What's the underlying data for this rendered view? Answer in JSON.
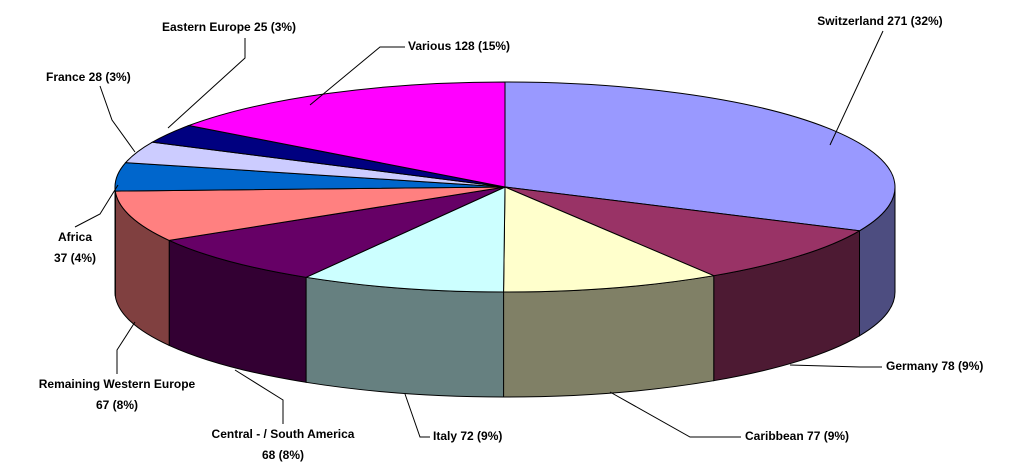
{
  "chart_data": {
    "type": "pie3d",
    "values": [
      271,
      78,
      77,
      72,
      68,
      67,
      37,
      28,
      25,
      128
    ],
    "value_labels": [
      [
        "Switzerland 271 (32%)"
      ],
      [
        "Germany 78 (9%)"
      ],
      [
        "Caribbean 77 (9%)"
      ],
      [
        "Italy 72 (9%)"
      ],
      [
        "Central - / South America",
        "68 (8%)"
      ],
      [
        "Remaining Western Europe",
        "67 (8%)"
      ],
      [
        "Africa",
        "37 (4%)"
      ],
      [
        "France 28 (3%)"
      ],
      [
        "Eastern Europe 25 (3%)"
      ],
      [
        "Various 128 (15%)"
      ]
    ],
    "colors": [
      "#9999ff",
      "#993366",
      "#ffffcc",
      "#ccffff",
      "#660066",
      "#ff8080",
      "#0066cc",
      "#ccccff",
      "#000080",
      "#ff00ff"
    ]
  }
}
